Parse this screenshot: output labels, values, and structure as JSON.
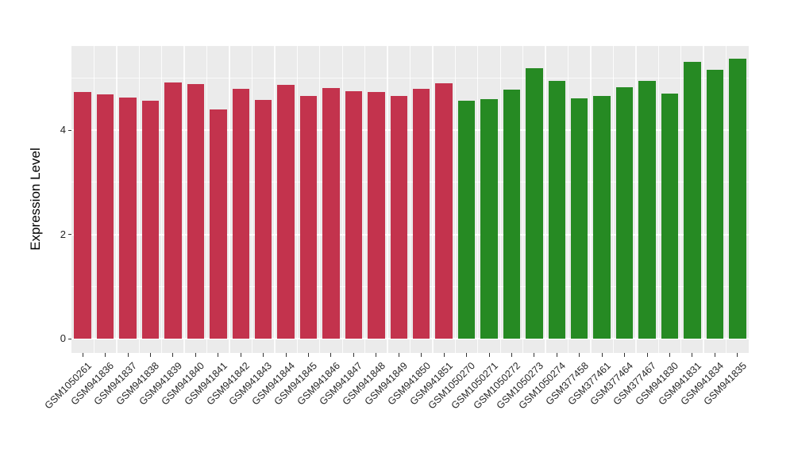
{
  "figure": {
    "background": "#FFFFFF",
    "panel_background": "#EBEBEB",
    "grid_color": "#FFFFFF",
    "tick_color": "#333333",
    "label_color": "#262626"
  },
  "chart_data": {
    "type": "bar",
    "title": "",
    "xlabel": "",
    "ylabel": "Expression Level",
    "y_ticks": [
      0,
      2,
      4
    ],
    "y_minor_ticks": [
      1,
      3,
      5
    ],
    "ylim_display": [
      -0.27,
      5.61
    ],
    "grid": true,
    "legend": false,
    "group_colors": {
      "group_left": "#C3334D",
      "group_right": "#268A23"
    },
    "bars": [
      {
        "label": "GSM1050261",
        "value": 4.73,
        "color": "#C3334D"
      },
      {
        "label": "GSM941836",
        "value": 4.68,
        "color": "#C3334D"
      },
      {
        "label": "GSM941837",
        "value": 4.63,
        "color": "#C3334D"
      },
      {
        "label": "GSM941838",
        "value": 4.57,
        "color": "#C3334D"
      },
      {
        "label": "GSM941839",
        "value": 4.92,
        "color": "#C3334D"
      },
      {
        "label": "GSM941840",
        "value": 4.88,
        "color": "#C3334D"
      },
      {
        "label": "GSM941841",
        "value": 4.4,
        "color": "#C3334D"
      },
      {
        "label": "GSM941842",
        "value": 4.79,
        "color": "#C3334D"
      },
      {
        "label": "GSM941843",
        "value": 4.58,
        "color": "#C3334D"
      },
      {
        "label": "GSM941844",
        "value": 4.87,
        "color": "#C3334D"
      },
      {
        "label": "GSM941845",
        "value": 4.65,
        "color": "#C3334D"
      },
      {
        "label": "GSM941846",
        "value": 4.81,
        "color": "#C3334D"
      },
      {
        "label": "GSM941847",
        "value": 4.75,
        "color": "#C3334D"
      },
      {
        "label": "GSM941848",
        "value": 4.73,
        "color": "#C3334D"
      },
      {
        "label": "GSM941849",
        "value": 4.65,
        "color": "#C3334D"
      },
      {
        "label": "GSM941850",
        "value": 4.79,
        "color": "#C3334D"
      },
      {
        "label": "GSM941851",
        "value": 4.9,
        "color": "#C3334D"
      },
      {
        "label": "GSM1050270",
        "value": 4.56,
        "color": "#268A23"
      },
      {
        "label": "GSM1050271",
        "value": 4.59,
        "color": "#268A23"
      },
      {
        "label": "GSM1050272",
        "value": 4.77,
        "color": "#268A23"
      },
      {
        "label": "GSM1050273",
        "value": 5.18,
        "color": "#268A23"
      },
      {
        "label": "GSM1050274",
        "value": 4.94,
        "color": "#268A23"
      },
      {
        "label": "GSM377458",
        "value": 4.61,
        "color": "#268A23"
      },
      {
        "label": "GSM377461",
        "value": 4.65,
        "color": "#268A23"
      },
      {
        "label": "GSM377464",
        "value": 4.82,
        "color": "#268A23"
      },
      {
        "label": "GSM377467",
        "value": 4.94,
        "color": "#268A23"
      },
      {
        "label": "GSM941830",
        "value": 4.7,
        "color": "#268A23"
      },
      {
        "label": "GSM941831",
        "value": 5.31,
        "color": "#268A23"
      },
      {
        "label": "GSM941834",
        "value": 5.16,
        "color": "#268A23"
      },
      {
        "label": "GSM941835",
        "value": 5.37,
        "color": "#268A23"
      }
    ]
  }
}
